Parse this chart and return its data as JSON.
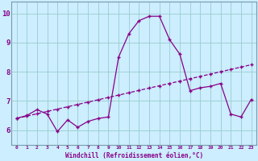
{
  "xlabel": "Windchill (Refroidissement éolien,°C)",
  "background_color": "#cceeff",
  "line_color": "#880088",
  "grid_color": "#99cccc",
  "x_hours": [
    0,
    1,
    2,
    3,
    4,
    5,
    6,
    7,
    8,
    9,
    10,
    11,
    12,
    13,
    14,
    15,
    16,
    17,
    18,
    19,
    20,
    21,
    22,
    23
  ],
  "windchill": [
    6.4,
    6.5,
    6.7,
    6.55,
    5.95,
    6.35,
    6.1,
    6.3,
    6.4,
    6.45,
    8.5,
    9.3,
    9.75,
    9.9,
    9.9,
    9.1,
    8.6,
    7.35,
    7.45,
    7.5,
    7.6,
    6.55,
    6.45,
    7.05
  ],
  "temp": [
    6.4,
    6.48,
    6.56,
    6.64,
    6.72,
    6.8,
    6.88,
    6.96,
    7.04,
    7.12,
    7.2,
    7.28,
    7.36,
    7.44,
    7.52,
    7.6,
    7.68,
    7.76,
    7.84,
    7.92,
    8.0,
    8.08,
    8.16,
    8.24
  ],
  "ylim_min": 5.5,
  "ylim_max": 10.4,
  "yticks": [
    6,
    7,
    8,
    9,
    10
  ]
}
